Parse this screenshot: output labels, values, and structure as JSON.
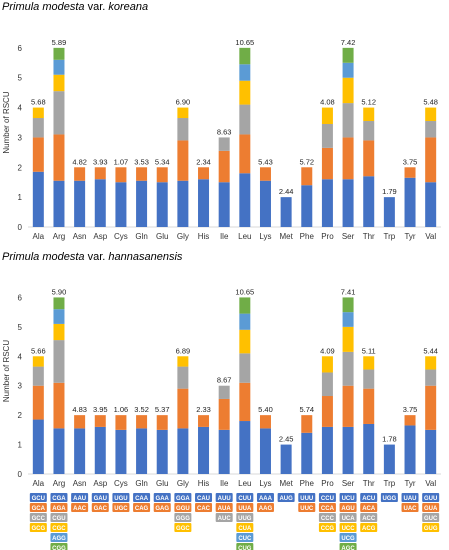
{
  "titles": {
    "top": {
      "species": "Primula modesta",
      "rank": "var.",
      "variety": "koreana"
    },
    "bottom": {
      "species": "Primula modesta",
      "rank": "var.",
      "variety": "hannasanensis"
    }
  },
  "colors": {
    "blue": "#4472c4",
    "orange": "#ed7d31",
    "gray": "#a5a5a5",
    "yellow": "#ffc000",
    "lightblue": "#5b9bd5",
    "green": "#70ad47"
  },
  "codon_legend": [
    {
      "aa": "Ala",
      "codons": [
        "GCU",
        "GCA",
        "GCC",
        "GCG"
      ]
    },
    {
      "aa": "Arg",
      "codons": [
        "CGA",
        "AGA",
        "CGU",
        "CGC",
        "AGG",
        "CGG"
      ]
    },
    {
      "aa": "Asn",
      "codons": [
        "AAU",
        "AAC"
      ]
    },
    {
      "aa": "Asp",
      "codons": [
        "GAU",
        "GAC"
      ]
    },
    {
      "aa": "Cys",
      "codons": [
        "UGU",
        "UGC"
      ]
    },
    {
      "aa": "Gln",
      "codons": [
        "CAA",
        "CAG"
      ]
    },
    {
      "aa": "Glu",
      "codons": [
        "GAA",
        "GAG"
      ]
    },
    {
      "aa": "Gly",
      "codons": [
        "GGA",
        "GGU",
        "GGG",
        "GGC"
      ]
    },
    {
      "aa": "His",
      "codons": [
        "CAU",
        "CAC"
      ]
    },
    {
      "aa": "Ile",
      "codons": [
        "AUU",
        "AUA",
        "AUC"
      ]
    },
    {
      "aa": "Leu",
      "codons": [
        "CUU",
        "UUA",
        "UUG",
        "CUA",
        "CUC",
        "CUG"
      ]
    },
    {
      "aa": "Lys",
      "codons": [
        "AAA",
        "AAG"
      ]
    },
    {
      "aa": "Met",
      "codons": [
        "AUG"
      ]
    },
    {
      "aa": "Phe",
      "codons": [
        "UUU",
        "UUC"
      ]
    },
    {
      "aa": "Pro",
      "codons": [
        "CCU",
        "CCA",
        "CCC",
        "CCG"
      ]
    },
    {
      "aa": "Ser",
      "codons": [
        "UCU",
        "AGU",
        "UCA",
        "UCC",
        "UCG",
        "AGC"
      ]
    },
    {
      "aa": "Thr",
      "codons": [
        "ACU",
        "ACA",
        "ACC",
        "ACG"
      ]
    },
    {
      "aa": "Trp",
      "codons": [
        "UGG"
      ]
    },
    {
      "aa": "Tyr",
      "codons": [
        "UAU",
        "UAC"
      ]
    },
    {
      "aa": "Val",
      "codons": [
        "GUU",
        "GUA",
        "GUC",
        "GUG"
      ]
    }
  ],
  "chart_data": [
    {
      "type": "bar",
      "stacked": true,
      "ylabel": "Number of RSCU",
      "ylim": [
        0,
        7
      ],
      "yticks": [
        0,
        1,
        2,
        3,
        4,
        5,
        6
      ],
      "categories": [
        "Ala",
        "Arg",
        "Asn",
        "Asp",
        "Cys",
        "Gln",
        "Glu",
        "Gly",
        "His",
        "Ile",
        "Leu",
        "Lys",
        "Met",
        "Phe",
        "Pro",
        "Ser",
        "Thr",
        "Trp",
        "Tyr",
        "Val"
      ],
      "totals": [
        "5.68",
        "5.89",
        "4.82",
        "3.93",
        "1.07",
        "3.53",
        "5.34",
        "6.90",
        "2.34",
        "8.63",
        "10.65",
        "5.43",
        "2.44",
        "5.72",
        "4.08",
        "7.42",
        "5.12",
        "1.79",
        "3.75",
        "5.48"
      ],
      "stacks": [
        [
          1.85,
          1.15,
          0.65,
          0.35
        ],
        [
          1.55,
          1.55,
          1.45,
          0.55,
          0.5,
          0.4
        ],
        [
          1.55,
          0.45
        ],
        [
          1.6,
          0.4
        ],
        [
          1.5,
          0.5
        ],
        [
          1.55,
          0.45
        ],
        [
          1.5,
          0.5
        ],
        [
          1.55,
          1.35,
          0.75,
          0.35
        ],
        [
          1.6,
          0.4
        ],
        [
          1.5,
          1.05,
          0.45
        ],
        [
          1.8,
          1.3,
          1.0,
          0.8,
          0.55,
          0.55
        ],
        [
          1.55,
          0.45
        ],
        [
          1.0
        ],
        [
          1.4,
          0.6
        ],
        [
          1.6,
          1.05,
          0.8,
          0.55
        ],
        [
          1.6,
          1.4,
          1.15,
          0.85,
          0.5,
          0.5
        ],
        [
          1.7,
          1.2,
          0.65,
          0.45
        ],
        [
          1.0
        ],
        [
          1.65,
          0.35
        ],
        [
          1.5,
          1.5,
          0.55,
          0.45
        ]
      ]
    },
    {
      "type": "bar",
      "stacked": true,
      "ylabel": "Number of RSCU",
      "ylim": [
        0,
        7
      ],
      "yticks": [
        0,
        1,
        2,
        3,
        4,
        5,
        6
      ],
      "categories": [
        "Ala",
        "Arg",
        "Asn",
        "Asp",
        "Cys",
        "Gln",
        "Glu",
        "Gly",
        "His",
        "Ile",
        "Leu",
        "Lys",
        "Met",
        "Phe",
        "Pro",
        "Ser",
        "Thr",
        "Trp",
        "Tyr",
        "Val"
      ],
      "totals": [
        "5.66",
        "5.90",
        "4.83",
        "3.95",
        "1.06",
        "3.52",
        "5.37",
        "6.89",
        "2.33",
        "8.67",
        "10.65",
        "5.40",
        "2.45",
        "5.74",
        "4.09",
        "7.41",
        "5.11",
        "1.78",
        "3.75",
        "5.44"
      ],
      "stacks": [
        [
          1.85,
          1.15,
          0.65,
          0.35
        ],
        [
          1.55,
          1.55,
          1.45,
          0.55,
          0.5,
          0.4
        ],
        [
          1.55,
          0.45
        ],
        [
          1.6,
          0.4
        ],
        [
          1.5,
          0.5
        ],
        [
          1.55,
          0.45
        ],
        [
          1.5,
          0.5
        ],
        [
          1.55,
          1.35,
          0.75,
          0.35
        ],
        [
          1.6,
          0.4
        ],
        [
          1.5,
          1.05,
          0.45
        ],
        [
          1.8,
          1.3,
          1.0,
          0.8,
          0.55,
          0.55
        ],
        [
          1.55,
          0.45
        ],
        [
          1.0
        ],
        [
          1.4,
          0.6
        ],
        [
          1.6,
          1.05,
          0.8,
          0.55
        ],
        [
          1.6,
          1.4,
          1.15,
          0.85,
          0.5,
          0.5
        ],
        [
          1.7,
          1.2,
          0.65,
          0.45
        ],
        [
          1.0
        ],
        [
          1.65,
          0.35
        ],
        [
          1.5,
          1.5,
          0.55,
          0.45
        ]
      ]
    }
  ]
}
